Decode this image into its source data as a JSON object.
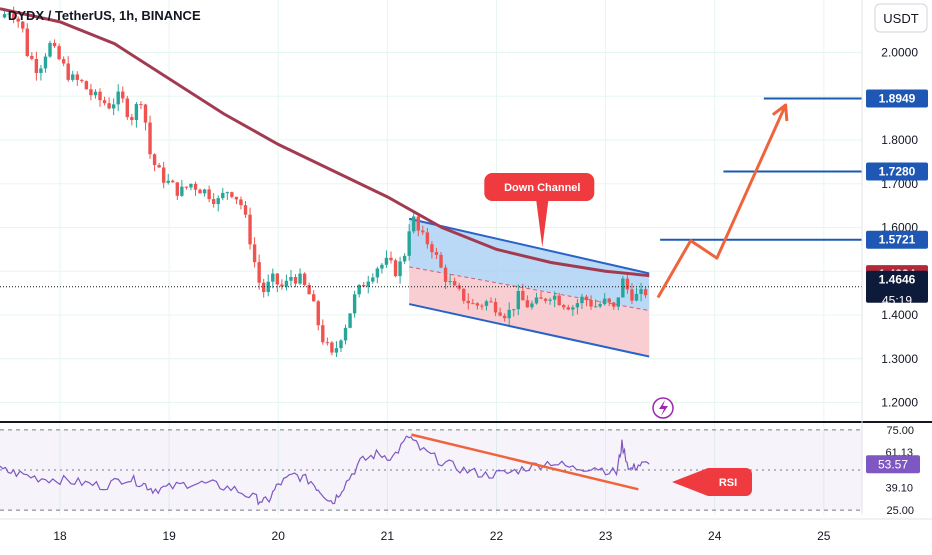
{
  "header": {
    "title": "DYDX / TetherUS, 1h, BINANCE"
  },
  "currency_button": "USDT",
  "chart_data": {
    "type": "candlestick",
    "title": "DYDX / TetherUS, 1h, BINANCE",
    "symbol": "DYDX / TetherUS",
    "interval": "1h",
    "exchange": "BINANCE",
    "quote_currency": "USDT",
    "price_axis": {
      "ylim": [
        1.16,
        2.12
      ],
      "ticks": [
        "2.0000",
        "1.9000",
        "1.8000",
        "1.7000",
        "1.6000",
        "1.5000",
        "1.4000",
        "1.3000",
        "1.2000"
      ]
    },
    "time_axis": {
      "xlim": [
        17.45,
        25.35
      ],
      "ticks": [
        {
          "x": 18,
          "label": "18"
        },
        {
          "x": 19,
          "label": "19"
        },
        {
          "x": 20,
          "label": "20"
        },
        {
          "x": 21,
          "label": "21"
        },
        {
          "x": 22,
          "label": "22"
        },
        {
          "x": 23,
          "label": "23"
        },
        {
          "x": 24,
          "label": "24"
        },
        {
          "x": 25,
          "label": "25"
        }
      ]
    },
    "price_path": [
      [
        17.45,
        2.08
      ],
      [
        17.55,
        2.1
      ],
      [
        17.65,
        2.06
      ],
      [
        17.7,
        2.0
      ],
      [
        17.8,
        1.96
      ],
      [
        17.9,
        2.02
      ],
      [
        18.0,
        1.98
      ],
      [
        18.1,
        1.94
      ],
      [
        18.2,
        1.93
      ],
      [
        18.3,
        1.9
      ],
      [
        18.45,
        1.88
      ],
      [
        18.55,
        1.9
      ],
      [
        18.65,
        1.85
      ],
      [
        18.75,
        1.9
      ],
      [
        18.83,
        1.76
      ],
      [
        18.92,
        1.72
      ],
      [
        19.0,
        1.7
      ],
      [
        19.1,
        1.68
      ],
      [
        19.2,
        1.7
      ],
      [
        19.35,
        1.68
      ],
      [
        19.45,
        1.66
      ],
      [
        19.55,
        1.69
      ],
      [
        19.65,
        1.66
      ],
      [
        19.72,
        1.6
      ],
      [
        19.8,
        1.5
      ],
      [
        19.85,
        1.45
      ],
      [
        19.95,
        1.48
      ],
      [
        20.05,
        1.46
      ],
      [
        20.12,
        1.49
      ],
      [
        20.2,
        1.48
      ],
      [
        20.3,
        1.44
      ],
      [
        20.4,
        1.35
      ],
      [
        20.5,
        1.3
      ],
      [
        20.55,
        1.34
      ],
      [
        20.62,
        1.38
      ],
      [
        20.7,
        1.44
      ],
      [
        20.8,
        1.48
      ],
      [
        20.9,
        1.51
      ],
      [
        21.0,
        1.52
      ],
      [
        21.08,
        1.5
      ],
      [
        21.15,
        1.53
      ],
      [
        21.22,
        1.63
      ],
      [
        21.3,
        1.58
      ],
      [
        21.4,
        1.56
      ],
      [
        21.5,
        1.5
      ],
      [
        21.6,
        1.46
      ],
      [
        21.7,
        1.44
      ],
      [
        21.8,
        1.42
      ],
      [
        21.9,
        1.43
      ],
      [
        22.0,
        1.42
      ],
      [
        22.1,
        1.4
      ],
      [
        22.2,
        1.44
      ],
      [
        22.3,
        1.42
      ],
      [
        22.4,
        1.43
      ],
      [
        22.5,
        1.45
      ],
      [
        22.6,
        1.43
      ],
      [
        22.7,
        1.42
      ],
      [
        22.8,
        1.44
      ],
      [
        22.9,
        1.42
      ],
      [
        23.0,
        1.43
      ],
      [
        23.08,
        1.41
      ],
      [
        23.15,
        1.48
      ],
      [
        23.22,
        1.45
      ],
      [
        23.3,
        1.44
      ],
      [
        23.4,
        1.46
      ]
    ],
    "moving_average": [
      [
        17.45,
        2.1
      ],
      [
        18.0,
        2.07
      ],
      [
        18.5,
        2.02
      ],
      [
        19.0,
        1.94
      ],
      [
        19.5,
        1.86
      ],
      [
        20.0,
        1.79
      ],
      [
        20.5,
        1.73
      ],
      [
        21.0,
        1.67
      ],
      [
        21.5,
        1.6
      ],
      [
        22.0,
        1.55
      ],
      [
        22.5,
        1.52
      ],
      [
        23.0,
        1.5
      ],
      [
        23.4,
        1.49
      ]
    ],
    "moving_average_color": "#a23b52",
    "down_channel": {
      "label": "Down Channel",
      "upper_start": [
        21.2,
        1.62
      ],
      "upper_end": [
        23.4,
        1.495
      ],
      "mid_start": [
        21.2,
        1.51
      ],
      "mid_end": [
        23.4,
        1.41
      ],
      "lower_start": [
        21.2,
        1.425
      ],
      "lower_end": [
        23.4,
        1.305
      ],
      "upper_fill": "#a9cff5",
      "lower_fill": "#f6c2c8"
    },
    "projection_path": [
      [
        23.48,
        1.44
      ],
      [
        23.78,
        1.57
      ],
      [
        24.02,
        1.53
      ],
      [
        24.65,
        1.88
      ]
    ],
    "levels": [
      {
        "value": 1.8949,
        "label": "1.8949",
        "x_from": 24.45
      },
      {
        "value": 1.728,
        "label": "1.7280",
        "x_from": 24.08
      },
      {
        "value": 1.5721,
        "label": "1.5721",
        "x_from": 23.5
      }
    ],
    "last_price": {
      "value": 1.4646,
      "label": "1.4646",
      "countdown": "45:19"
    },
    "ma_label": {
      "value": 1.4934,
      "label": "1.4934"
    },
    "rsi": {
      "label": "RSI",
      "levels": [
        "75.00",
        "61.13",
        "53.57",
        "39.10",
        "25.00"
      ],
      "ylim": [
        22,
        78
      ],
      "current": "53.57",
      "series": [
        [
          17.45,
          50
        ],
        [
          17.6,
          48
        ],
        [
          17.8,
          45
        ],
        [
          18.0,
          44
        ],
        [
          18.2,
          42
        ],
        [
          18.4,
          40
        ],
        [
          18.6,
          45
        ],
        [
          18.75,
          42
        ],
        [
          18.85,
          38
        ],
        [
          19.0,
          39
        ],
        [
          19.2,
          42
        ],
        [
          19.4,
          41
        ],
        [
          19.6,
          38
        ],
        [
          19.8,
          32
        ],
        [
          19.9,
          30
        ],
        [
          20.0,
          41
        ],
        [
          20.15,
          47
        ],
        [
          20.3,
          43
        ],
        [
          20.4,
          36
        ],
        [
          20.5,
          30
        ],
        [
          20.6,
          40
        ],
        [
          20.75,
          55
        ],
        [
          20.9,
          60
        ],
        [
          21.05,
          58
        ],
        [
          21.2,
          71
        ],
        [
          21.3,
          63
        ],
        [
          21.5,
          55
        ],
        [
          21.7,
          50
        ],
        [
          21.9,
          47
        ],
        [
          22.1,
          48
        ],
        [
          22.3,
          52
        ],
        [
          22.5,
          55
        ],
        [
          22.7,
          51
        ],
        [
          22.9,
          52
        ],
        [
          23.1,
          48
        ],
        [
          23.15,
          66
        ],
        [
          23.22,
          50
        ],
        [
          23.3,
          53
        ],
        [
          23.4,
          53.6
        ]
      ],
      "divergence": [
        [
          21.22,
          72
        ],
        [
          23.3,
          38
        ]
      ]
    },
    "colors": {
      "up": "#26a69a",
      "down": "#ef5350",
      "level": "#1e58b4",
      "arrow": "#f0643c",
      "ma_label_bg": "#b22a3a",
      "price_label_bg": "#0e1a3a",
      "rsi_line": "#7e57c2"
    }
  }
}
